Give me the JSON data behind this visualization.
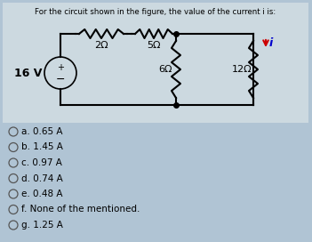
{
  "title": "For the circuit shown in the figure, the value of the current i is:",
  "bg_color": "#b0c4d4",
  "circuit_bg": "#ccd9e0",
  "voltage_source": "16 V",
  "resistors": [
    "2Ω",
    "5Ω",
    "6Ω",
    "12Ω"
  ],
  "current_label": "i",
  "options": [
    "a. 0.65 A",
    "b. 1.45 A",
    "c. 0.97 A",
    "d. 0.74 A",
    "e. 0.48 A",
    "f. None of the mentioned.",
    "g. 1.25 A"
  ],
  "title_fontsize": 6.2,
  "option_fontsize": 7.5,
  "resistor_label_fontsize": 8.0,
  "vs_label_fontsize": 9.0
}
